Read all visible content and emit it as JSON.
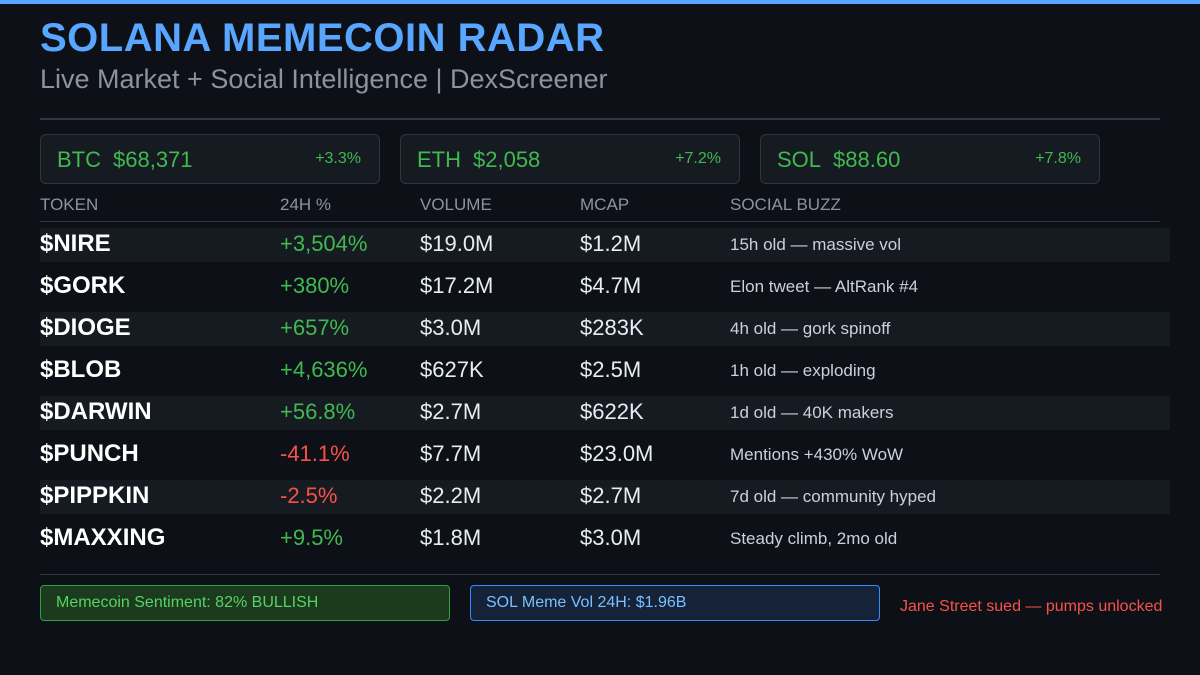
{
  "colors": {
    "accent": "#58a6ff",
    "positive": "#3fb950",
    "negative": "#f85149"
  },
  "header": {
    "title": "SOLANA MEMECOIN RADAR",
    "subtitle": "Live Market + Social Intelligence | DexScreener"
  },
  "tickers": [
    {
      "symbol": "BTC",
      "price": "$68,371",
      "change": "+3.3%"
    },
    {
      "symbol": "ETH",
      "price": "$2,058",
      "change": "+7.2%"
    },
    {
      "symbol": "SOL",
      "price": "$88.60",
      "change": "+7.8%"
    }
  ],
  "table": {
    "columns": {
      "token": "TOKEN",
      "change": "24H %",
      "volume": "VOLUME",
      "mcap": "MCAP",
      "buzz": "SOCIAL BUZZ"
    },
    "rows": [
      {
        "token": "$NIRE",
        "change": "+3,504%",
        "volume": "$19.0M",
        "mcap": "$1.2M",
        "buzz": "15h old — massive vol"
      },
      {
        "token": "$GORK",
        "change": "+380%",
        "volume": "$17.2M",
        "mcap": "$4.7M",
        "buzz": "Elon tweet — AltRank #4"
      },
      {
        "token": "$DIOGE",
        "change": "+657%",
        "volume": "$3.0M",
        "mcap": "$283K",
        "buzz": "4h old — gork spinoff"
      },
      {
        "token": "$BLOB",
        "change": "+4,636%",
        "volume": "$627K",
        "mcap": "$2.5M",
        "buzz": "1h old — exploding"
      },
      {
        "token": "$DARWIN",
        "change": "+56.8%",
        "volume": "$2.7M",
        "mcap": "$622K",
        "buzz": "1d old — 40K makers"
      },
      {
        "token": "$PUNCH",
        "change": "-41.1%",
        "volume": "$7.7M",
        "mcap": "$23.0M",
        "buzz": "Mentions +430% WoW"
      },
      {
        "token": "$PIPPKIN",
        "change": "-2.5%",
        "volume": "$2.2M",
        "mcap": "$2.7M",
        "buzz": "7d old — community hyped"
      },
      {
        "token": "$MAXXING",
        "change": "+9.5%",
        "volume": "$1.8M",
        "mcap": "$3.0M",
        "buzz": "Steady climb, 2mo old"
      }
    ]
  },
  "footer": {
    "sentiment": "Memecoin Sentiment: 82% BULLISH",
    "volume": "SOL Meme Vol 24H: $1.96B",
    "alert": "Jane Street sued — pumps unlocked"
  }
}
